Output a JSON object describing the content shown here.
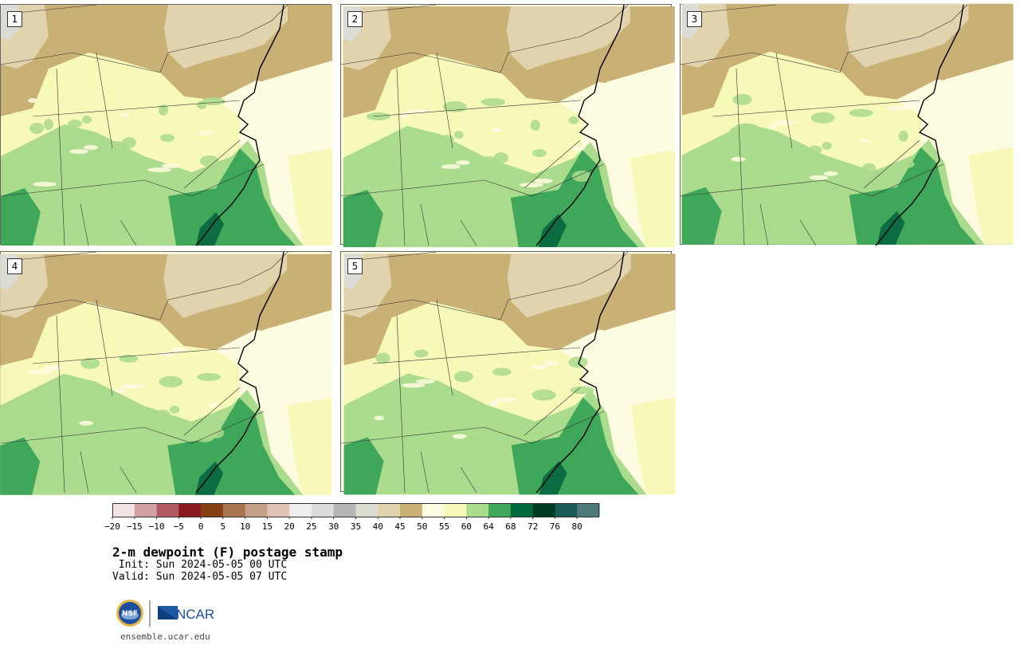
{
  "colors": {
    "background": "#ffffff",
    "tan_dark": "#c9b075",
    "tan_light": "#e0d3ad",
    "gray_light": "#dcdcd6",
    "cream": "#fefce0",
    "pale_yellow": "#f6f9b8",
    "light_green": "#abdb8c",
    "green": "#3ea75a",
    "dark_green": "#0c6b40"
  },
  "panels": [
    {
      "label": "1"
    },
    {
      "label": "2"
    },
    {
      "label": "3"
    },
    {
      "label": "4"
    },
    {
      "label": "5"
    }
  ],
  "colorbar": {
    "colors": [
      "#f3e5e5",
      "#d1a0a4",
      "#b25b63",
      "#8c1820",
      "#874014",
      "#ab7450",
      "#c59f86",
      "#dfc4b5",
      "#eeeeee",
      "#dcdcdc",
      "#b6b6b6",
      "#dcdcd0",
      "#e0d3ad",
      "#c9b075",
      "#fefce0",
      "#f6f9b8",
      "#abdb8c",
      "#3ea75a",
      "#006a3c",
      "#003a22",
      "#1a5b57",
      "#4d7b7b"
    ],
    "tick_labels": [
      "−20",
      "−15",
      "−10",
      "−5",
      "0",
      "5",
      "10",
      "15",
      "20",
      "25",
      "30",
      "35",
      "40",
      "45",
      "50",
      "55",
      "60",
      "64",
      "68",
      "72",
      "76",
      "80"
    ]
  },
  "title": "2-m dewpoint (F) postage stamp",
  "init_line": " Init: Sun 2024-05-05 00 UTC",
  "valid_line": "Valid: Sun 2024-05-05 07 UTC",
  "logo": {
    "nsf_text": "NSF",
    "ncar_text": "NCAR"
  },
  "site": "ensemble.ucar.edu"
}
